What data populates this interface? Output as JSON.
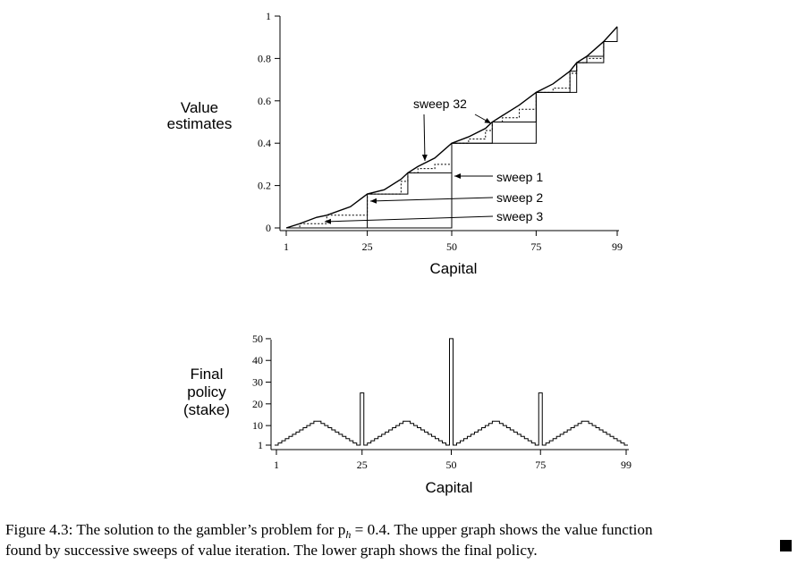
{
  "chart_data": [
    {
      "type": "line",
      "ylabel": [
        "Value",
        "estimates"
      ],
      "xlabel": "Capital",
      "xticks": [
        1,
        25,
        50,
        75,
        99
      ],
      "xlim": [
        1,
        99
      ],
      "yticks": [
        "0",
        "0.2",
        "0.4",
        "0.6",
        "0.8",
        "1"
      ],
      "ylim": [
        0,
        1
      ],
      "x": [
        1,
        5,
        10,
        13,
        20,
        25,
        30,
        35,
        37,
        40,
        45,
        50,
        55,
        60,
        62,
        65,
        70,
        75,
        80,
        85,
        87,
        90,
        95,
        99
      ],
      "series": [
        {
          "name": "sweep 32",
          "values": [
            0.0,
            0.02,
            0.05,
            0.06,
            0.1,
            0.16,
            0.18,
            0.23,
            0.26,
            0.29,
            0.33,
            0.4,
            0.43,
            0.47,
            0.5,
            0.53,
            0.58,
            0.64,
            0.68,
            0.74,
            0.78,
            0.81,
            0.88,
            0.95
          ]
        },
        {
          "name": "sweep 1",
          "values": [
            0,
            0,
            0,
            0,
            0,
            0,
            0,
            0,
            0,
            0,
            0,
            0.4,
            0.4,
            0.4,
            0.4,
            0.4,
            0.4,
            0.64,
            0.64,
            0.64,
            0.78,
            0.78,
            0.88,
            0.95
          ]
        },
        {
          "name": "sweep 2",
          "values": [
            0,
            0,
            0,
            0,
            0,
            0.16,
            0.16,
            0.16,
            0.26,
            0.26,
            0.26,
            0.4,
            0.4,
            0.4,
            0.5,
            0.5,
            0.5,
            0.64,
            0.64,
            0.74,
            0.78,
            0.81,
            0.88,
            0.95
          ]
        },
        {
          "name": "sweep 3",
          "values": [
            0,
            0.02,
            0.02,
            0.06,
            0.06,
            0.16,
            0.16,
            0.22,
            0.26,
            0.28,
            0.3,
            0.4,
            0.42,
            0.46,
            0.5,
            0.52,
            0.56,
            0.64,
            0.66,
            0.73,
            0.78,
            0.8,
            0.88,
            0.95
          ]
        }
      ],
      "annotations": [
        "sweep 32",
        "sweep 1",
        "sweep 2",
        "sweep 3"
      ]
    },
    {
      "type": "step",
      "ylabel": [
        "Final",
        "policy",
        "(stake)"
      ],
      "xlabel": "Capital",
      "xticks": [
        1,
        25,
        50,
        75,
        99
      ],
      "xlim": [
        1,
        99
      ],
      "yticks": [
        "1",
        "10",
        "20",
        "30",
        "40",
        "50"
      ],
      "ylim": [
        1,
        50
      ],
      "capital": [
        1,
        2,
        3,
        4,
        5,
        6,
        7,
        8,
        9,
        10,
        11,
        12,
        13,
        14,
        15,
        16,
        17,
        18,
        19,
        20,
        21,
        22,
        23,
        24,
        25,
        26,
        27,
        28,
        29,
        30,
        31,
        32,
        33,
        34,
        35,
        36,
        37,
        38,
        39,
        40,
        41,
        42,
        43,
        44,
        45,
        46,
        47,
        48,
        49,
        50,
        51,
        52,
        53,
        54,
        55,
        56,
        57,
        58,
        59,
        60,
        61,
        62,
        63,
        64,
        65,
        66,
        67,
        68,
        69,
        70,
        71,
        72,
        73,
        74,
        75,
        76,
        77,
        78,
        79,
        80,
        81,
        82,
        83,
        84,
        85,
        86,
        87,
        88,
        89,
        90,
        91,
        92,
        93,
        94,
        95,
        96,
        97,
        98,
        99
      ],
      "stake": [
        1,
        2,
        3,
        4,
        5,
        6,
        7,
        8,
        9,
        10,
        11,
        12,
        12,
        11,
        10,
        9,
        8,
        7,
        6,
        5,
        4,
        3,
        2,
        1,
        25,
        1,
        2,
        3,
        4,
        5,
        6,
        7,
        8,
        9,
        10,
        11,
        12,
        12,
        11,
        10,
        9,
        8,
        7,
        6,
        5,
        4,
        3,
        2,
        1,
        50,
        1,
        2,
        3,
        4,
        5,
        6,
        7,
        8,
        9,
        10,
        11,
        12,
        12,
        11,
        10,
        9,
        8,
        7,
        6,
        5,
        4,
        3,
        2,
        1,
        25,
        1,
        2,
        3,
        4,
        5,
        6,
        7,
        8,
        9,
        10,
        11,
        12,
        12,
        11,
        10,
        9,
        8,
        7,
        6,
        5,
        4,
        3,
        2,
        1
      ]
    }
  ],
  "caption": {
    "line1": "Figure 4.3: The solution to the gambler’s problem for p",
    "sub": "h",
    "line1b": " = 0.4. The upper graph shows the value function",
    "line2": "found by successive sweeps of value iteration. The lower graph shows the final policy."
  }
}
